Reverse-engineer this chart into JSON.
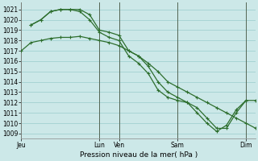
{
  "background_color": "#cce8e8",
  "grid_color": "#99cccc",
  "line_color": "#2d6e2d",
  "xlabel": "Pression niveau de la mer( hPa )",
  "ylim": [
    1008.5,
    1021.7
  ],
  "yticks": [
    1009,
    1010,
    1011,
    1012,
    1013,
    1014,
    1015,
    1016,
    1017,
    1018,
    1019,
    1020,
    1021
  ],
  "xlim": [
    0,
    48
  ],
  "xtick_labels": [
    "Jeu",
    "Lun",
    "Ven",
    "Sam",
    "Dim"
  ],
  "xtick_positions": [
    0,
    16,
    20,
    32,
    46
  ],
  "vlines": [
    0,
    16,
    20,
    32,
    46
  ],
  "series0": {
    "x": [
      0,
      2,
      4,
      6,
      8,
      10,
      12,
      14,
      16,
      18,
      20,
      22,
      24,
      26,
      28,
      30,
      32,
      34,
      36,
      38,
      40,
      42,
      44,
      46,
      48
    ],
    "y": [
      1017.0,
      1017.8,
      1018.0,
      1018.2,
      1018.3,
      1018.3,
      1018.4,
      1018.2,
      1018.0,
      1017.8,
      1017.5,
      1017.0,
      1016.5,
      1015.8,
      1015.0,
      1014.0,
      1013.5,
      1013.0,
      1012.5,
      1012.0,
      1011.5,
      1011.0,
      1010.5,
      1010.0,
      1009.5
    ]
  },
  "series1": {
    "x": [
      2,
      4,
      6,
      8,
      10,
      12,
      14,
      16,
      18,
      20,
      22,
      24,
      26,
      28,
      30,
      32,
      34,
      36,
      38,
      40,
      42,
      44,
      46,
      48
    ],
    "y": [
      1019.5,
      1020.0,
      1020.8,
      1021.0,
      1021.0,
      1021.0,
      1020.5,
      1019.0,
      1018.8,
      1018.5,
      1017.0,
      1016.5,
      1015.5,
      1014.0,
      1013.0,
      1012.5,
      1012.0,
      1011.5,
      1010.5,
      1009.5,
      1009.5,
      1011.0,
      1012.2,
      1012.2
    ]
  },
  "series2": {
    "x": [
      2,
      4,
      6,
      8,
      10,
      12,
      14,
      16,
      18,
      20,
      22,
      24,
      26,
      28,
      30,
      32,
      34,
      36,
      38,
      40,
      42,
      44,
      46
    ],
    "y": [
      1019.5,
      1020.0,
      1020.8,
      1021.0,
      1021.0,
      1020.8,
      1020.0,
      1018.8,
      1018.3,
      1018.0,
      1016.5,
      1015.8,
      1014.8,
      1013.2,
      1012.5,
      1012.2,
      1012.0,
      1011.0,
      1010.0,
      1009.2,
      1009.8,
      1011.3,
      1012.2
    ]
  }
}
